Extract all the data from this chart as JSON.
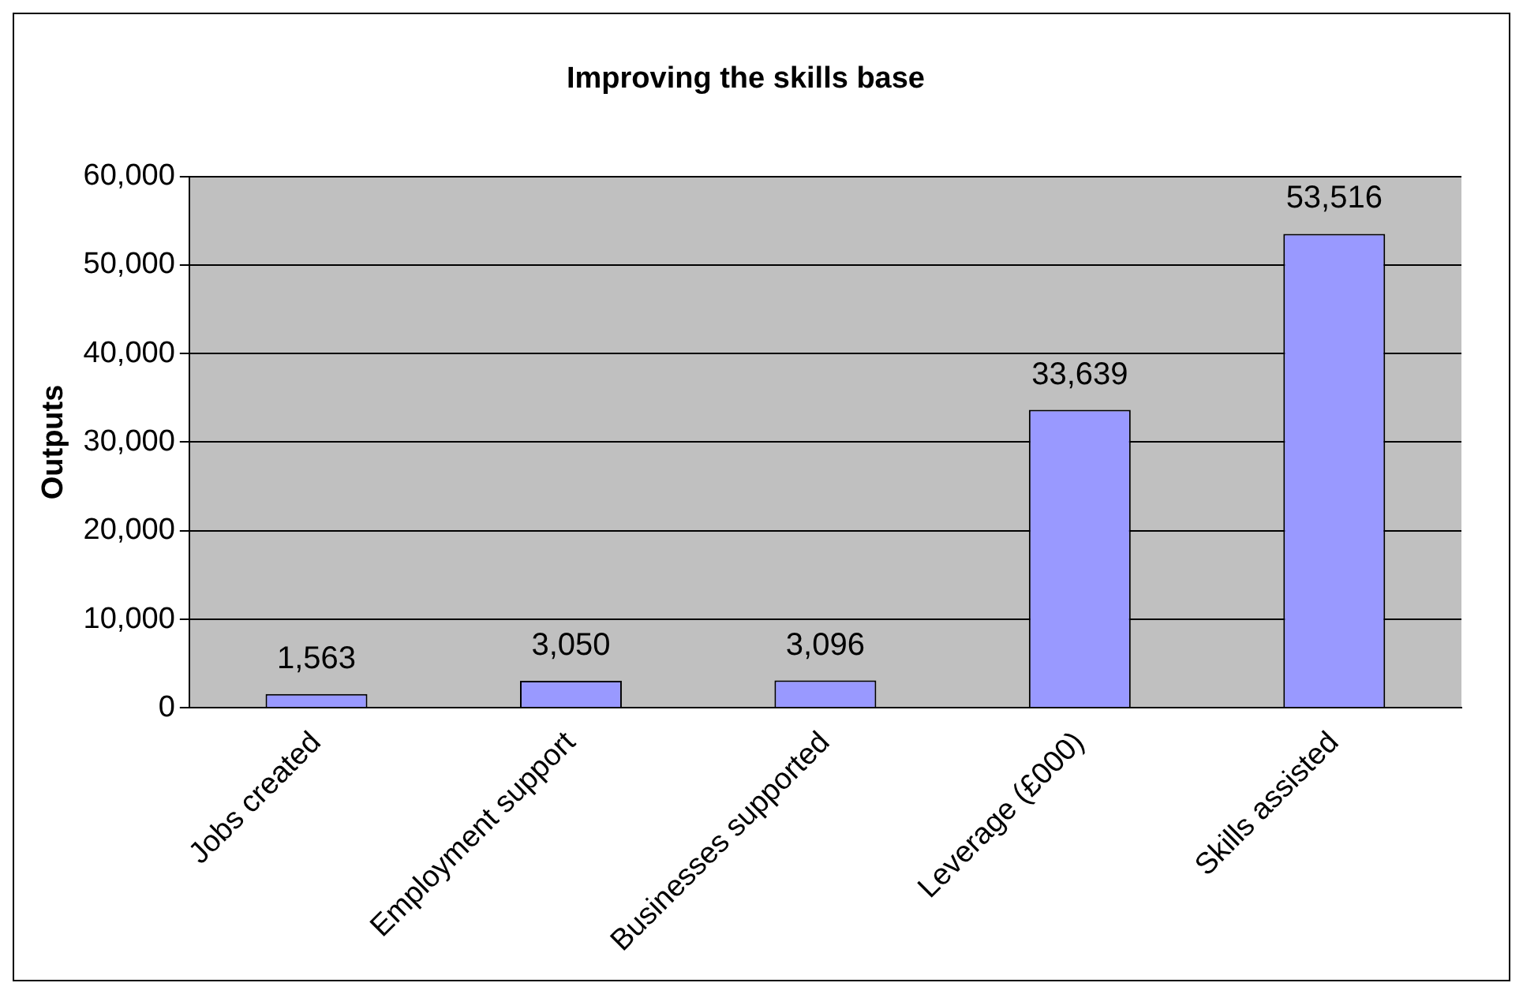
{
  "chart_data": {
    "type": "bar",
    "title": "Improving the skills base",
    "ylabel": "Outputs",
    "categories": [
      "Jobs created",
      "Employment support",
      "Businesses supported",
      "Leverage (£000)",
      "Skills assisted"
    ],
    "values": [
      1563,
      3050,
      3096,
      33639,
      53516
    ],
    "color": "#9999ff",
    "ylim": [
      0,
      60000
    ],
    "yticks": [
      {
        "value": 0,
        "label": "0"
      },
      {
        "value": 10000,
        "label": "10,000"
      },
      {
        "value": 20000,
        "label": "20,000"
      },
      {
        "value": 30000,
        "label": "30,000"
      },
      {
        "value": 40000,
        "label": "40,000"
      },
      {
        "value": 50000,
        "label": "50,000"
      },
      {
        "value": 60000,
        "label": "60,000"
      }
    ],
    "value_labels": [
      "1,563",
      "3,050",
      "3,096",
      "33,639",
      "53,516"
    ],
    "grid": "y",
    "legend": false
  }
}
